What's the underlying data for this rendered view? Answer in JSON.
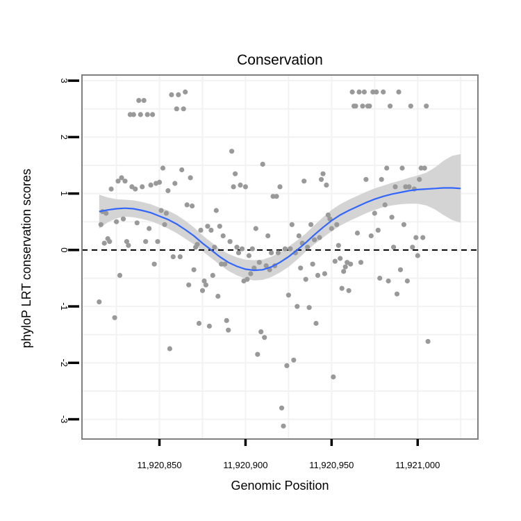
{
  "chart_data": {
    "type": "scatter",
    "title": "Conservation",
    "xlabel": "Genomic Position",
    "ylabel": "phyloP LRT conservation scores",
    "xlim": [
      11920805,
      11921035
    ],
    "ylim": [
      -3.35,
      3.1
    ],
    "x_ticks": [
      11920850,
      11920900,
      11920950,
      11921000
    ],
    "x_tick_labels": [
      "11,920,850",
      "11,920,900",
      "11,920,950",
      "11,921,000"
    ],
    "y_ticks": [
      -3,
      -2,
      -1,
      0,
      1,
      2,
      3
    ],
    "y_tick_labels": [
      "-3",
      "-2",
      "-1",
      "0",
      "1",
      "2",
      "3"
    ],
    "reference_line": {
      "y": 0,
      "style": "dashed"
    },
    "grid": true,
    "colors": {
      "points": "#999999",
      "smooth_line": "#3366FF",
      "ribbon": "#d4d4d4",
      "panel_border": "#7f7f7f",
      "grid": "#f2f2f2"
    },
    "series": [
      {
        "name": "phyloP scores",
        "points": [
          [
            11920815,
            -0.92
          ],
          [
            11920816,
            0.45
          ],
          [
            11920817,
            0.68
          ],
          [
            11920818,
            0.12
          ],
          [
            11920819,
            0.65
          ],
          [
            11920820,
            0.2
          ],
          [
            11920821,
            0.15
          ],
          [
            11920822,
            1.08
          ],
          [
            11920824,
            -1.2
          ],
          [
            11920825,
            0.5
          ],
          [
            11920826,
            1.22
          ],
          [
            11920827,
            -0.45
          ],
          [
            11920828,
            1.28
          ],
          [
            11920829,
            0.55
          ],
          [
            11920830,
            1.22
          ],
          [
            11920831,
            0.15
          ],
          [
            11920832,
            0.08
          ],
          [
            11920833,
            2.4
          ],
          [
            11920834,
            1.12
          ],
          [
            11920835,
            2.4
          ],
          [
            11920836,
            1.08
          ],
          [
            11920837,
            0.48
          ],
          [
            11920838,
            2.65
          ],
          [
            11920839,
            2.4
          ],
          [
            11920840,
            1.12
          ],
          [
            11920841,
            2.65
          ],
          [
            11920842,
            0.15
          ],
          [
            11920843,
            2.4
          ],
          [
            11920844,
            0.38
          ],
          [
            11920845,
            1.15
          ],
          [
            11920846,
            2.4
          ],
          [
            11920847,
            -0.25
          ],
          [
            11920848,
            1.18
          ],
          [
            11920849,
            0.15
          ],
          [
            11920850,
            1.2
          ],
          [
            11920851,
            0.7
          ],
          [
            11920852,
            1.45
          ],
          [
            11920853,
            0.45
          ],
          [
            11920854,
            0.65
          ],
          [
            11920855,
            1.05
          ],
          [
            11920856,
            -1.75
          ],
          [
            11920857,
            2.75
          ],
          [
            11920858,
            -0.12
          ],
          [
            11920859,
            1.18
          ],
          [
            11920860,
            2.5
          ],
          [
            11920861,
            2.75
          ],
          [
            11920862,
            -0.12
          ],
          [
            11920863,
            1.42
          ],
          [
            11920864,
            2.5
          ],
          [
            11920865,
            2.8
          ],
          [
            11920866,
            0.8
          ],
          [
            11920867,
            -0.62
          ],
          [
            11920868,
            1.28
          ],
          [
            11920869,
            0.78
          ],
          [
            11920870,
            -0.35
          ],
          [
            11920871,
            0.05
          ],
          [
            11920872,
            0.1
          ],
          [
            11920873,
            -1.3
          ],
          [
            11920874,
            0.35
          ],
          [
            11920875,
            -0.72
          ],
          [
            11920876,
            -0.55
          ],
          [
            11920877,
            -0.62
          ],
          [
            11920878,
            0.42
          ],
          [
            11920879,
            -1.35
          ],
          [
            11920880,
            0.35
          ],
          [
            11920881,
            -0.45
          ],
          [
            11920882,
            0.05
          ],
          [
            11920883,
            0.7
          ],
          [
            11920884,
            -0.82
          ],
          [
            11920885,
            0.42
          ],
          [
            11920886,
            -0.25
          ],
          [
            11920887,
            0.25
          ],
          [
            11920888,
            -0.25
          ],
          [
            11920889,
            -1.25
          ],
          [
            11920890,
            -1.42
          ],
          [
            11920891,
            0.15
          ],
          [
            11920892,
            1.75
          ],
          [
            11920893,
            1.12
          ],
          [
            11920894,
            1.35
          ],
          [
            11920895,
            0.05
          ],
          [
            11920896,
            -0.05
          ],
          [
            11920897,
            1.15
          ],
          [
            11920898,
            0.02
          ],
          [
            11920899,
            -0.55
          ],
          [
            11920900,
            1.12
          ],
          [
            11920901,
            -0.52
          ],
          [
            11920902,
            -0.1
          ],
          [
            11920903,
            -0.42
          ],
          [
            11920904,
            0.02
          ],
          [
            11920905,
            -0.32
          ],
          [
            11920906,
            0.38
          ],
          [
            11920907,
            -1.85
          ],
          [
            11920908,
            -0.22
          ],
          [
            11920909,
            -1.45
          ],
          [
            11920910,
            1.52
          ],
          [
            11920911,
            -1.55
          ],
          [
            11920912,
            -0.28
          ],
          [
            11920913,
            0.25
          ],
          [
            11920914,
            -0.35
          ],
          [
            11920915,
            -0.05
          ],
          [
            11920916,
            0.95
          ],
          [
            11920917,
            -0.28
          ],
          [
            11920918,
            0.95
          ],
          [
            11920919,
            -0.05
          ],
          [
            11920920,
            1.12
          ],
          [
            11920921,
            -2.8
          ],
          [
            11920922,
            -3.12
          ],
          [
            11920923,
            0.02
          ],
          [
            11920924,
            -2.05
          ],
          [
            11920925,
            -0.8
          ],
          [
            11920926,
            0.02
          ],
          [
            11920927,
            0.45
          ],
          [
            11920928,
            -1.95
          ],
          [
            11920929,
            -0.05
          ],
          [
            11920930,
            -1.0
          ],
          [
            11920931,
            0.25
          ],
          [
            11920932,
            -0.32
          ],
          [
            11920933,
            0.12
          ],
          [
            11920934,
            1.22
          ],
          [
            11920935,
            -0.52
          ],
          [
            11920936,
            0.05
          ],
          [
            11920937,
            -1.02
          ],
          [
            11920938,
            0.45
          ],
          [
            11920939,
            -0.25
          ],
          [
            11920940,
            0.18
          ],
          [
            11920941,
            -1.3
          ],
          [
            11920942,
            -0.45
          ],
          [
            11920943,
            0.22
          ],
          [
            11920944,
            1.25
          ],
          [
            11920945,
            1.35
          ],
          [
            11920946,
            -0.42
          ],
          [
            11920947,
            1.15
          ],
          [
            11920948,
            0.62
          ],
          [
            11920949,
            0.55
          ],
          [
            11920950,
            0.38
          ],
          [
            11920951,
            -2.25
          ],
          [
            11920952,
            -0.2
          ],
          [
            11920953,
            0.45
          ],
          [
            11920954,
            0.08
          ],
          [
            11920955,
            -0.15
          ],
          [
            11920956,
            -0.68
          ],
          [
            11920957,
            -0.38
          ],
          [
            11920958,
            -0.3
          ],
          [
            11920959,
            -0.22
          ],
          [
            11920960,
            -0.72
          ],
          [
            11920961,
            -0.25
          ],
          [
            11920962,
            2.8
          ],
          [
            11920963,
            2.55
          ],
          [
            11920964,
            2.55
          ],
          [
            11920965,
            0.3
          ],
          [
            11920966,
            2.8
          ],
          [
            11920967,
            -0.22
          ],
          [
            11920968,
            2.55
          ],
          [
            11920969,
            2.8
          ],
          [
            11920970,
            1.25
          ],
          [
            11920971,
            2.55
          ],
          [
            11920972,
            2.55
          ],
          [
            11920973,
            0.25
          ],
          [
            11920974,
            2.8
          ],
          [
            11920975,
            0.65
          ],
          [
            11920976,
            2.8
          ],
          [
            11920977,
            0.35
          ],
          [
            11920978,
            -0.5
          ],
          [
            11920979,
            1.25
          ],
          [
            11920980,
            2.8
          ],
          [
            11920981,
            0.8
          ],
          [
            11920982,
            1.45
          ],
          [
            11920983,
            -0.55
          ],
          [
            11920984,
            2.55
          ],
          [
            11920985,
            0.58
          ],
          [
            11920986,
            0.05
          ],
          [
            11920987,
            1.12
          ],
          [
            11920988,
            -0.78
          ],
          [
            11920989,
            2.8
          ],
          [
            11920990,
            -0.35
          ],
          [
            11920991,
            1.45
          ],
          [
            11920992,
            0.45
          ],
          [
            11920993,
            1.12
          ],
          [
            11920994,
            -0.55
          ],
          [
            11920995,
            1.12
          ],
          [
            11920996,
            2.55
          ],
          [
            11920997,
            0.05
          ],
          [
            11920998,
            1.08
          ],
          [
            11920999,
            0.22
          ],
          [
            11921000,
            -0.1
          ],
          [
            11921001,
            1.25
          ],
          [
            11921002,
            1.45
          ],
          [
            11921003,
            0.22
          ],
          [
            11921004,
            1.45
          ],
          [
            11921005,
            2.55
          ],
          [
            11921006,
            -1.62
          ]
        ]
      },
      {
        "name": "loess fit",
        "x": [
          11920815,
          11920820,
          11920825,
          11920830,
          11920835,
          11920840,
          11920845,
          11920850,
          11920855,
          11920860,
          11920865,
          11920870,
          11920875,
          11920880,
          11920885,
          11920890,
          11920895,
          11920900,
          11920905,
          11920910,
          11920915,
          11920920,
          11920925,
          11920930,
          11920935,
          11920940,
          11920945,
          11920950,
          11920955,
          11920960,
          11920965,
          11920970,
          11920975,
          11920980,
          11920985,
          11920990,
          11920995,
          11921000,
          11921005,
          11921010,
          11921015,
          11921020,
          11921025
        ],
        "y": [
          0.68,
          0.71,
          0.73,
          0.74,
          0.73,
          0.7,
          0.66,
          0.6,
          0.54,
          0.46,
          0.36,
          0.25,
          0.12,
          0.0,
          -0.12,
          -0.22,
          -0.29,
          -0.34,
          -0.36,
          -0.35,
          -0.3,
          -0.22,
          -0.12,
          0.0,
          0.13,
          0.27,
          0.4,
          0.52,
          0.62,
          0.7,
          0.77,
          0.84,
          0.9,
          0.95,
          0.99,
          1.02,
          1.05,
          1.07,
          1.08,
          1.09,
          1.1,
          1.1,
          1.09
        ],
        "lower": [
          0.38,
          0.49,
          0.56,
          0.59,
          0.58,
          0.55,
          0.51,
          0.45,
          0.38,
          0.3,
          0.2,
          0.1,
          -0.02,
          -0.14,
          -0.26,
          -0.37,
          -0.45,
          -0.51,
          -0.54,
          -0.53,
          -0.48,
          -0.4,
          -0.3,
          -0.17,
          -0.03,
          0.1,
          0.22,
          0.33,
          0.43,
          0.51,
          0.58,
          0.65,
          0.71,
          0.76,
          0.79,
          0.81,
          0.82,
          0.82,
          0.79,
          0.72,
          0.62,
          0.53,
          0.48
        ],
        "upper": [
          0.98,
          0.93,
          0.9,
          0.89,
          0.88,
          0.85,
          0.81,
          0.75,
          0.7,
          0.62,
          0.52,
          0.4,
          0.26,
          0.14,
          0.02,
          -0.07,
          -0.13,
          -0.17,
          -0.18,
          -0.17,
          -0.12,
          -0.04,
          0.06,
          0.17,
          0.29,
          0.44,
          0.58,
          0.71,
          0.81,
          0.89,
          0.96,
          1.03,
          1.09,
          1.14,
          1.19,
          1.23,
          1.28,
          1.32,
          1.37,
          1.46,
          1.58,
          1.67,
          1.7
        ]
      }
    ]
  }
}
